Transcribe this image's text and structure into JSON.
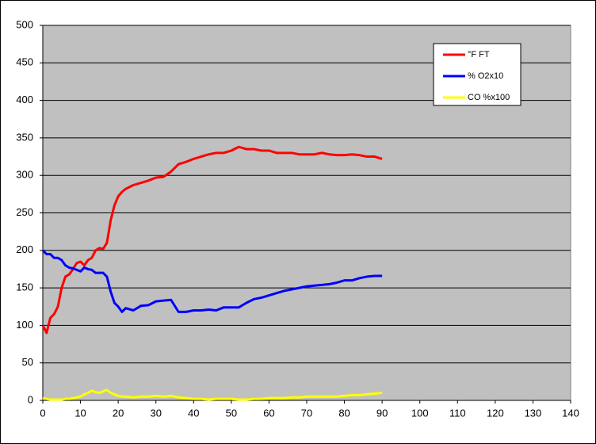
{
  "chart_data": {
    "type": "line",
    "x": [
      0,
      1,
      2,
      3,
      4,
      5,
      6,
      7,
      8,
      9,
      10,
      11,
      12,
      13,
      14,
      15,
      16,
      17,
      18,
      19,
      20,
      21,
      22,
      24,
      26,
      28,
      30,
      32,
      34,
      36,
      38,
      40,
      42,
      44,
      46,
      48,
      50,
      52,
      54,
      56,
      58,
      60,
      62,
      64,
      66,
      68,
      70,
      72,
      74,
      76,
      78,
      80,
      82,
      84,
      86,
      88,
      90
    ],
    "series": [
      {
        "name": "°F FT",
        "color": "#ff0000",
        "values": [
          100,
          90,
          110,
          115,
          125,
          150,
          165,
          168,
          175,
          183,
          185,
          180,
          187,
          190,
          200,
          203,
          202,
          210,
          240,
          260,
          272,
          278,
          282,
          287,
          290,
          293,
          297,
          298,
          305,
          315,
          318,
          322,
          325,
          328,
          330,
          330,
          333,
          338,
          335,
          335,
          333,
          333,
          330,
          330,
          330,
          328,
          328,
          328,
          330,
          328,
          327,
          327,
          328,
          327,
          325,
          325,
          322
        ]
      },
      {
        "name": "% O2x10",
        "color": "#0000ff",
        "values": [
          200,
          195,
          195,
          190,
          190,
          187,
          180,
          177,
          176,
          174,
          172,
          177,
          175,
          174,
          170,
          170,
          170,
          165,
          145,
          130,
          125,
          118,
          123,
          120,
          126,
          127,
          132,
          133,
          134,
          118,
          118,
          120,
          120,
          121,
          120,
          124,
          124,
          124,
          130,
          135,
          137,
          140,
          143,
          146,
          148,
          150,
          152,
          153,
          154,
          155,
          157,
          160,
          160,
          163,
          165,
          166,
          166
        ]
      },
      {
        "name": "CO %x100",
        "color": "#ffff00",
        "values": [
          3,
          2,
          1,
          1,
          1,
          1,
          2,
          2,
          3,
          4,
          5,
          8,
          10,
          13,
          11,
          10,
          12,
          14,
          10,
          8,
          6,
          5,
          5,
          4,
          5,
          5,
          6,
          5,
          6,
          4,
          3,
          2,
          2,
          1,
          2,
          2,
          2,
          1,
          1,
          2,
          2,
          3,
          3,
          3,
          4,
          4,
          5,
          5,
          5,
          5,
          5,
          6,
          7,
          7,
          8,
          9,
          10
        ]
      }
    ],
    "xlim": [
      0,
      140
    ],
    "xticks": [
      0,
      10,
      20,
      30,
      40,
      50,
      60,
      70,
      80,
      90,
      100,
      110,
      120,
      130,
      140
    ],
    "ylim": [
      0,
      500
    ],
    "yticks": [
      0,
      50,
      100,
      150,
      200,
      250,
      300,
      350,
      400,
      450,
      500
    ],
    "grid": true,
    "legend": "top-right"
  }
}
